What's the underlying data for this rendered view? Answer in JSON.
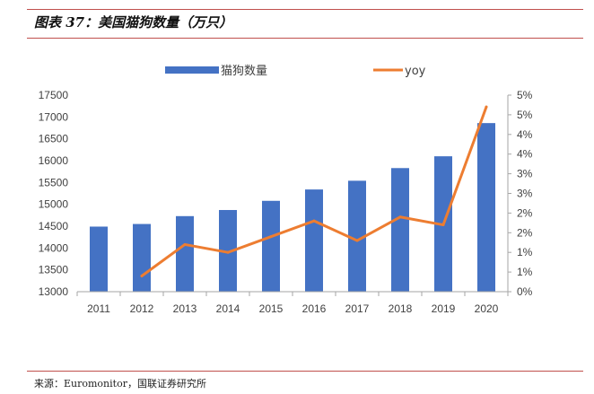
{
  "figure": {
    "title": "图表 37：美国猫狗数量（万只）",
    "source": "来源：Euromonitor，国联证券研究所"
  },
  "colors": {
    "bar": "#4472c4",
    "line": "#ed7d31",
    "rule": "#c0504d"
  },
  "chart_data": {
    "type": "bar+line",
    "categories": [
      "2011",
      "2012",
      "2013",
      "2014",
      "2015",
      "2016",
      "2017",
      "2018",
      "2019",
      "2020"
    ],
    "series": [
      {
        "name": "猫狗数量",
        "type": "bar",
        "axis": "left",
        "values": [
          14490,
          14550,
          14730,
          14870,
          15080,
          15340,
          15540,
          15830,
          16100,
          16860
        ]
      },
      {
        "name": "yoy",
        "type": "line",
        "axis": "right",
        "unit": "%",
        "values": [
          null,
          0.4,
          1.2,
          1.0,
          1.4,
          1.8,
          1.3,
          1.9,
          1.7,
          4.7
        ]
      }
    ],
    "ylim_left": [
      13000,
      17500
    ],
    "yticks_left": [
      "13000",
      "13500",
      "14000",
      "14500",
      "15000",
      "15500",
      "16000",
      "16500",
      "17000",
      "17500"
    ],
    "ylim_right": [
      0,
      5
    ],
    "yticks_right": [
      "0%",
      "1%",
      "1%",
      "2%",
      "2%",
      "3%",
      "3%",
      "4%",
      "4%",
      "5%",
      "5%"
    ],
    "legend_position": "top",
    "grid": false
  }
}
